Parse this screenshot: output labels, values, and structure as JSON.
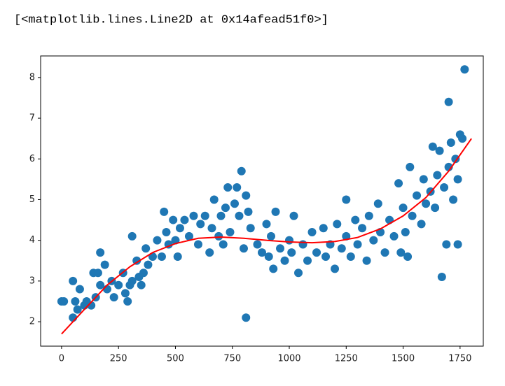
{
  "output_text": "[<matplotlib.lines.Line2D at 0x14afead51f0>]",
  "chart_data": {
    "type": "scatter",
    "xlim": [
      -92,
      1852
    ],
    "ylim": [
      1.4,
      8.53
    ],
    "xticks": [
      0,
      250,
      500,
      750,
      1000,
      1250,
      1500,
      1750
    ],
    "yticks": [
      2,
      3,
      4,
      5,
      6,
      7,
      8
    ],
    "grid": false,
    "series": [
      {
        "type": "scatter",
        "color": "#1f77b4",
        "x": [
          0,
          10,
          50,
          50,
          60,
          70,
          80,
          100,
          110,
          130,
          140,
          150,
          160,
          170,
          170,
          190,
          200,
          220,
          230,
          250,
          270,
          280,
          290,
          300,
          310,
          310,
          330,
          340,
          350,
          360,
          370,
          380,
          400,
          420,
          440,
          450,
          460,
          470,
          490,
          500,
          510,
          520,
          540,
          560,
          580,
          600,
          610,
          630,
          650,
          660,
          670,
          690,
          700,
          710,
          720,
          730,
          740,
          760,
          770,
          780,
          790,
          800,
          810,
          810,
          820,
          830,
          860,
          880,
          900,
          910,
          920,
          930,
          940,
          960,
          980,
          1000,
          1010,
          1020,
          1040,
          1060,
          1080,
          1100,
          1120,
          1150,
          1160,
          1180,
          1200,
          1210,
          1230,
          1250,
          1250,
          1270,
          1290,
          1300,
          1320,
          1340,
          1350,
          1370,
          1390,
          1400,
          1420,
          1440,
          1460,
          1480,
          1490,
          1500,
          1510,
          1520,
          1530,
          1540,
          1560,
          1580,
          1590,
          1600,
          1620,
          1630,
          1640,
          1650,
          1660,
          1670,
          1680,
          1690,
          1700,
          1700,
          1710,
          1720,
          1730,
          1740,
          1740,
          1750,
          1760,
          1770
        ],
        "values": [
          2.5,
          2.5,
          2.1,
          3.0,
          2.5,
          2.3,
          2.8,
          2.4,
          2.5,
          2.4,
          3.2,
          2.6,
          3.2,
          2.9,
          3.7,
          3.4,
          2.8,
          3.0,
          2.6,
          2.9,
          3.2,
          2.7,
          2.5,
          2.9,
          4.1,
          3.0,
          3.5,
          3.1,
          2.9,
          3.2,
          3.8,
          3.4,
          3.6,
          4.0,
          3.6,
          4.7,
          4.2,
          3.9,
          4.5,
          4.0,
          3.6,
          4.3,
          4.5,
          4.1,
          4.6,
          3.9,
          4.4,
          4.6,
          3.7,
          4.3,
          5.0,
          4.1,
          4.6,
          3.9,
          4.8,
          5.3,
          4.2,
          4.9,
          5.3,
          4.6,
          5.7,
          3.8,
          5.1,
          2.1,
          4.7,
          4.3,
          3.9,
          3.7,
          4.4,
          3.6,
          4.1,
          3.3,
          4.7,
          3.8,
          3.5,
          4.0,
          3.7,
          4.6,
          3.2,
          3.9,
          3.5,
          4.2,
          3.7,
          4.3,
          3.6,
          3.9,
          3.3,
          4.4,
          3.8,
          4.1,
          5.0,
          3.6,
          4.5,
          3.9,
          4.3,
          3.5,
          4.6,
          4.0,
          4.9,
          4.2,
          3.7,
          4.5,
          4.1,
          5.4,
          3.7,
          4.8,
          4.2,
          3.6,
          5.8,
          4.6,
          5.1,
          4.4,
          5.5,
          4.9,
          5.2,
          6.3,
          4.8,
          5.6,
          6.2,
          3.1,
          5.3,
          3.9,
          7.4,
          5.8,
          6.4,
          5.0,
          6.0,
          3.9,
          5.5,
          6.6,
          6.5,
          8.2
        ]
      },
      {
        "type": "line",
        "color": "#ff0000",
        "x": [
          0,
          100,
          200,
          300,
          400,
          500,
          600,
          700,
          800,
          900,
          1000,
          1100,
          1200,
          1300,
          1400,
          1500,
          1600,
          1700,
          1800
        ],
        "values": [
          1.7,
          2.3,
          2.9,
          3.35,
          3.7,
          3.92,
          4.05,
          4.08,
          4.05,
          4.0,
          3.96,
          3.94,
          3.97,
          4.07,
          4.28,
          4.6,
          5.05,
          5.7,
          6.5
        ]
      }
    ]
  }
}
